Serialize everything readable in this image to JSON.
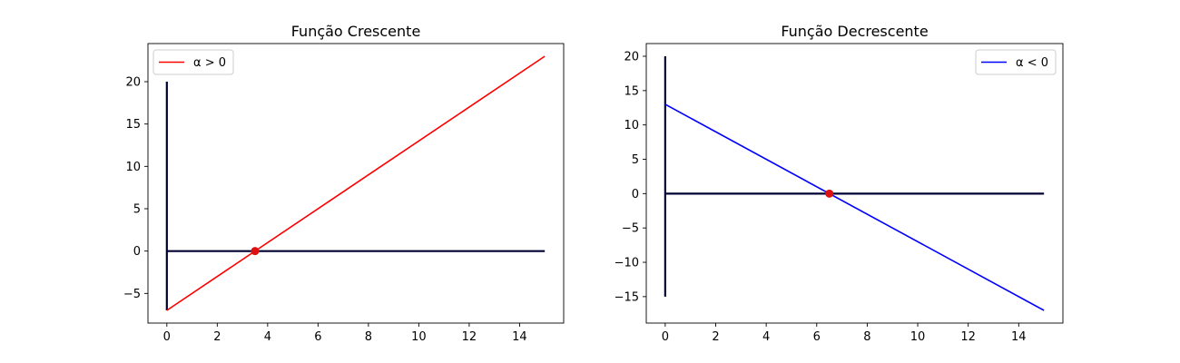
{
  "chart_data": [
    {
      "type": "line",
      "title": "Função Crescente",
      "xlabel": "",
      "ylabel": "",
      "xlim": [
        -0.75,
        15.75
      ],
      "ylim": [
        -8.5,
        24.5
      ],
      "xticks": [
        0,
        2,
        4,
        6,
        8,
        10,
        12,
        14
      ],
      "yticks": [
        -5,
        0,
        5,
        10,
        15,
        20
      ],
      "grid": false,
      "legend": {
        "position": "top-left"
      },
      "series": [
        {
          "name": "α > 0",
          "color": "#ff0000",
          "x": [
            0,
            15
          ],
          "y": [
            -7,
            23
          ]
        },
        {
          "color": "#000033",
          "x": [
            0,
            15
          ],
          "y": [
            0,
            0
          ]
        },
        {
          "color": "#000033",
          "x": [
            0,
            0
          ],
          "y": [
            -7,
            20
          ]
        }
      ],
      "points": [
        {
          "x": 3.5,
          "y": 0,
          "color": "#dd1111"
        }
      ]
    },
    {
      "type": "line",
      "title": "Função Decrescente",
      "xlabel": "",
      "ylabel": "",
      "xlim": [
        -0.75,
        15.75
      ],
      "ylim": [
        -18.85,
        21.85
      ],
      "xticks": [
        0,
        2,
        4,
        6,
        8,
        10,
        12,
        14
      ],
      "yticks": [
        -15,
        -10,
        -5,
        0,
        5,
        10,
        15,
        20
      ],
      "grid": false,
      "legend": {
        "position": "top-right"
      },
      "series": [
        {
          "name": "α < 0",
          "color": "#0000ff",
          "x": [
            0,
            15
          ],
          "y": [
            13,
            -17
          ]
        },
        {
          "color": "#000033",
          "x": [
            0,
            15
          ],
          "y": [
            0,
            0
          ]
        },
        {
          "color": "#000033",
          "x": [
            0,
            0
          ],
          "y": [
            -15,
            20
          ]
        }
      ],
      "points": [
        {
          "x": 6.5,
          "y": 0,
          "color": "#dd1111"
        }
      ]
    }
  ]
}
